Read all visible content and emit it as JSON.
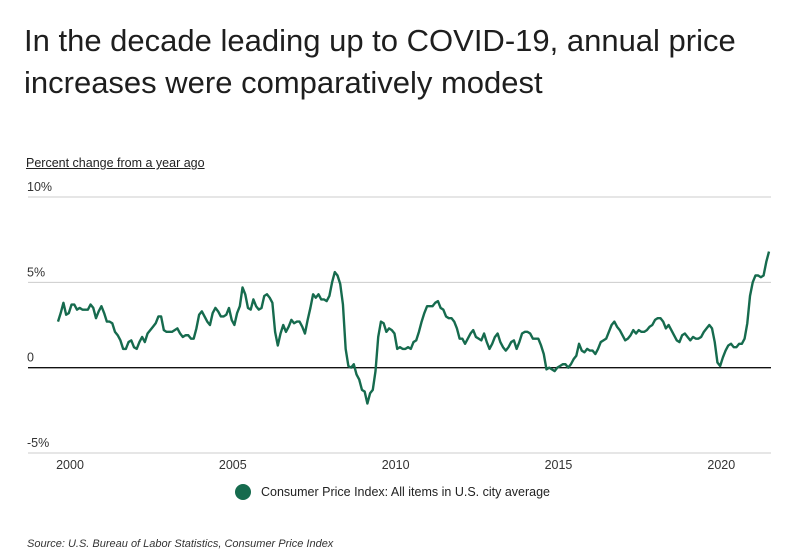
{
  "title": "In the decade leading up to COVID-19, annual price increases were comparatively modest",
  "source": "Source:  U.S. Bureau of Labor Statistics, Consumer Price Index",
  "chart_data": {
    "type": "line",
    "title": "In the decade leading up to COVID-19, annual price increases were comparatively modest",
    "ylabel": "Percent change from a year ago",
    "xlabel": "",
    "x_start": "2000-01",
    "x_end": "2021-11",
    "x_frequency": "monthly",
    "x_ticks": [
      "2000",
      "2005",
      "2010",
      "2015",
      "2020"
    ],
    "y_ticks": [
      "10%",
      "5%",
      "0",
      "-5%"
    ],
    "y_tick_values": [
      10,
      5,
      0,
      -5
    ],
    "ylim": [
      -5,
      10
    ],
    "grid": true,
    "legend_position": "bottom",
    "line_color": "#166b4e",
    "series": [
      {
        "name": "Consumer Price Index: All items in U.S. city average",
        "values": [
          2.7,
          3.2,
          3.8,
          3.1,
          3.2,
          3.7,
          3.7,
          3.4,
          3.5,
          3.4,
          3.4,
          3.4,
          3.7,
          3.5,
          2.9,
          3.3,
          3.6,
          3.2,
          2.7,
          2.7,
          2.6,
          2.1,
          1.9,
          1.6,
          1.1,
          1.1,
          1.5,
          1.6,
          1.2,
          1.1,
          1.5,
          1.8,
          1.5,
          2.0,
          2.2,
          2.4,
          2.6,
          3.0,
          3.0,
          2.2,
          2.1,
          2.1,
          2.1,
          2.2,
          2.3,
          2.0,
          1.8,
          1.9,
          1.9,
          1.7,
          1.7,
          2.3,
          3.1,
          3.3,
          3.0,
          2.7,
          2.5,
          3.2,
          3.5,
          3.3,
          3.0,
          3.0,
          3.1,
          3.5,
          2.8,
          2.5,
          3.2,
          3.6,
          4.7,
          4.3,
          3.5,
          3.4,
          4.0,
          3.6,
          3.4,
          3.5,
          4.2,
          4.3,
          4.1,
          3.8,
          2.1,
          1.3,
          2.0,
          2.5,
          2.1,
          2.4,
          2.8,
          2.6,
          2.7,
          2.7,
          2.4,
          2.0,
          2.8,
          3.5,
          4.3,
          4.1,
          4.3,
          4.0,
          4.0,
          3.9,
          4.2,
          5.0,
          5.6,
          5.4,
          4.9,
          3.7,
          1.1,
          0.1,
          0.0,
          0.2,
          -0.4,
          -0.7,
          -1.3,
          -1.4,
          -2.1,
          -1.5,
          -1.3,
          -0.2,
          1.8,
          2.7,
          2.6,
          2.1,
          2.3,
          2.2,
          2.0,
          1.1,
          1.2,
          1.1,
          1.1,
          1.2,
          1.1,
          1.5,
          1.6,
          2.1,
          2.7,
          3.2,
          3.6,
          3.6,
          3.6,
          3.8,
          3.9,
          3.5,
          3.4,
          3.0,
          2.9,
          2.9,
          2.7,
          2.3,
          1.7,
          1.7,
          1.4,
          1.7,
          2.0,
          2.2,
          1.8,
          1.7,
          1.6,
          2.0,
          1.5,
          1.1,
          1.4,
          1.8,
          2.0,
          1.5,
          1.2,
          1.0,
          1.2,
          1.5,
          1.6,
          1.1,
          1.5,
          2.0,
          2.1,
          2.1,
          2.0,
          1.7,
          1.7,
          1.7,
          1.3,
          0.8,
          -0.1,
          0.0,
          -0.1,
          -0.2,
          0.0,
          0.1,
          0.2,
          0.2,
          0.0,
          0.2,
          0.5,
          0.7,
          1.4,
          1.0,
          0.9,
          1.1,
          1.0,
          1.0,
          0.8,
          1.1,
          1.5,
          1.6,
          1.7,
          2.1,
          2.5,
          2.7,
          2.4,
          2.2,
          1.9,
          1.6,
          1.7,
          1.9,
          2.2,
          2.0,
          2.2,
          2.1,
          2.1,
          2.2,
          2.4,
          2.5,
          2.8,
          2.9,
          2.9,
          2.7,
          2.3,
          2.5,
          2.2,
          1.9,
          1.6,
          1.5,
          1.9,
          2.0,
          1.8,
          1.6,
          1.8,
          1.7,
          1.7,
          1.8,
          2.1,
          2.3,
          2.5,
          2.3,
          1.5,
          0.3,
          0.1,
          0.6,
          1.0,
          1.3,
          1.4,
          1.2,
          1.2,
          1.4,
          1.4,
          1.7,
          2.6,
          4.2,
          5.0,
          5.4,
          5.4,
          5.3,
          5.4,
          6.2,
          6.8
        ]
      }
    ]
  }
}
